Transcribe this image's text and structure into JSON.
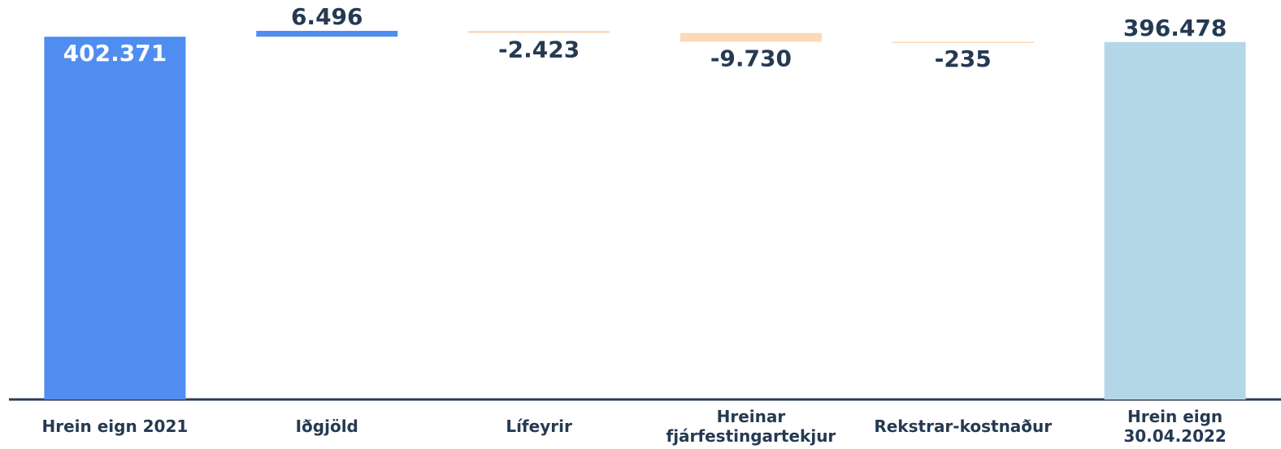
{
  "chart_data": {
    "type": "waterfall",
    "categories": [
      "Hrein eign 2021",
      "Iðgjöld",
      "Lífeyrir",
      "Hreinar fjárfestingartekjur",
      "Rekstrar-kostnaður",
      "Hrein eign 30.04.2022"
    ],
    "measure": [
      "absolute",
      "relative",
      "relative",
      "relative",
      "relative",
      "total"
    ],
    "values": [
      402371,
      6496,
      -2423,
      -9730,
      -235,
      396478
    ],
    "value_labels": [
      "402.371",
      "6.496",
      "-2.423",
      "-9.730",
      "-235",
      "396.478"
    ],
    "colors": [
      "#4f8ef0",
      "#4f8ef0",
      "#fdd9b8",
      "#fdd9b8",
      "#fdd9b8",
      "#b4d7e8"
    ]
  }
}
